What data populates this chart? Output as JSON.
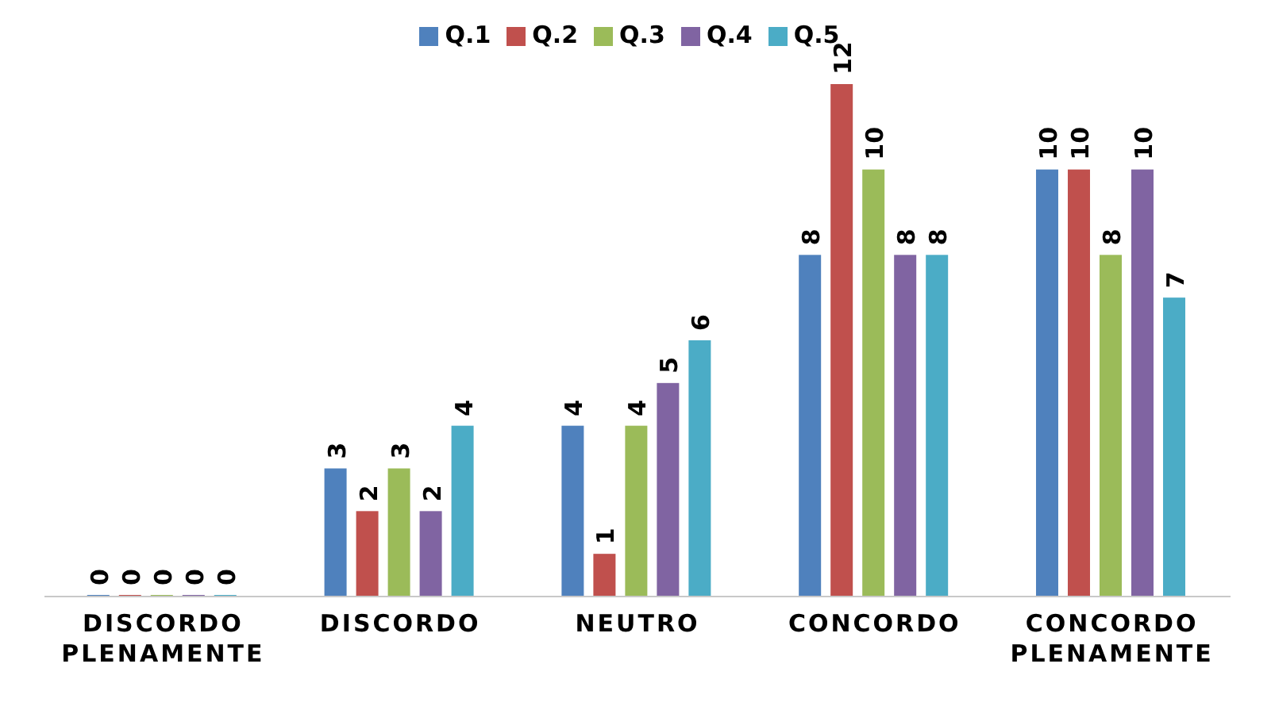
{
  "chart_data": {
    "type": "bar",
    "categories": [
      "DISCORDO PLENAMENTE",
      "DISCORDO",
      "NEUTRO",
      "CONCORDO",
      "CONCORDO PLENAMENTE"
    ],
    "series": [
      {
        "name": "Q.1",
        "color": "#4f81bd",
        "values": [
          0,
          3,
          4,
          8,
          10
        ]
      },
      {
        "name": "Q.2",
        "color": "#c0504d",
        "values": [
          0,
          2,
          1,
          12,
          10
        ]
      },
      {
        "name": "Q.3",
        "color": "#9bbb59",
        "values": [
          0,
          3,
          4,
          10,
          8
        ]
      },
      {
        "name": "Q.4",
        "color": "#8064a2",
        "values": [
          0,
          2,
          5,
          8,
          10
        ]
      },
      {
        "name": "Q.5",
        "color": "#4bacc6",
        "values": [
          0,
          4,
          6,
          8,
          7
        ]
      }
    ],
    "data_labels": true,
    "legend": "top",
    "grid": false
  }
}
